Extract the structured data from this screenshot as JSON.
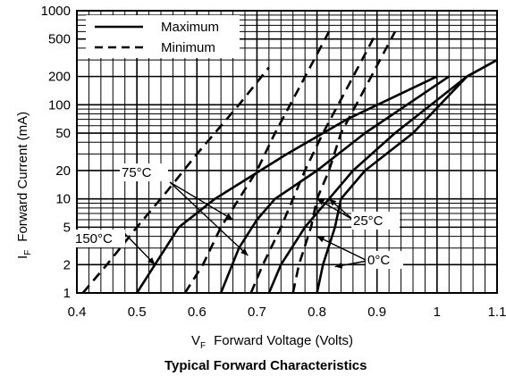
{
  "chart_data": {
    "type": "line",
    "caption": "Typical Forward Characteristics",
    "xlabel": {
      "symbol": "V",
      "sub": "F",
      "text": "Forward Voltage (Volts)"
    },
    "ylabel": {
      "symbol": "I",
      "sub": "F",
      "text": "Forward Current (mA)"
    },
    "xlim": [
      0.4,
      1.1
    ],
    "ylim": [
      1,
      1000
    ],
    "y_scale": "log",
    "x_ticks": [
      "0.4",
      "0.5",
      "0.6",
      "0.7",
      "0.8",
      "0.9",
      "1",
      "1.1"
    ],
    "x_tick_values": [
      0.4,
      0.5,
      0.6,
      0.7,
      0.8,
      0.9,
      1.0,
      1.1
    ],
    "y_ticks": [
      "1",
      "2",
      "5",
      "10",
      "20",
      "50",
      "100",
      "200",
      "500",
      "1000"
    ],
    "y_tick_values": [
      1,
      2,
      5,
      10,
      20,
      50,
      100,
      200,
      500,
      1000
    ],
    "grid": true,
    "legend": {
      "placement": "top-left",
      "entries": [
        {
          "label": "Maximum",
          "style": "solid"
        },
        {
          "label": "Minimum",
          "style": "dashed"
        }
      ]
    },
    "series": [
      {
        "temperature": "150°C",
        "style": "solid",
        "points": [
          [
            0.5,
            1
          ],
          [
            0.53,
            2
          ],
          [
            0.57,
            5
          ],
          [
            0.63,
            10
          ],
          [
            0.75,
            30
          ],
          [
            0.85,
            70
          ],
          [
            1.0,
            200
          ]
        ]
      },
      {
        "temperature": "75°C",
        "style": "solid",
        "points": [
          [
            0.64,
            1
          ],
          [
            0.67,
            3
          ],
          [
            0.7,
            6
          ],
          [
            0.73,
            10
          ],
          [
            0.8,
            20
          ],
          [
            0.88,
            50
          ],
          [
            1.02,
            200
          ]
        ]
      },
      {
        "temperature": "25°C",
        "style": "solid",
        "points": [
          [
            0.72,
            1
          ],
          [
            0.74,
            2
          ],
          [
            0.78,
            5
          ],
          [
            0.82,
            10
          ],
          [
            0.86,
            20
          ],
          [
            0.93,
            50
          ],
          [
            1.05,
            200
          ],
          [
            1.1,
            300
          ]
        ]
      },
      {
        "temperature": "0°C",
        "style": "solid",
        "points": [
          [
            0.8,
            1
          ],
          [
            0.81,
            2
          ],
          [
            0.83,
            5
          ],
          [
            0.84,
            10
          ],
          [
            0.88,
            20
          ],
          [
            0.96,
            50
          ],
          [
            1.05,
            200
          ],
          [
            1.1,
            300
          ]
        ]
      },
      {
        "temperature": "150°C",
        "style": "dashed",
        "points": [
          [
            0.41,
            1
          ],
          [
            0.45,
            2
          ],
          [
            0.5,
            5
          ],
          [
            0.55,
            12
          ],
          [
            0.6,
            30
          ],
          [
            0.67,
            100
          ],
          [
            0.72,
            250
          ]
        ]
      },
      {
        "temperature": "75°C",
        "style": "dashed",
        "points": [
          [
            0.58,
            1
          ],
          [
            0.61,
            2
          ],
          [
            0.64,
            5
          ],
          [
            0.67,
            10
          ],
          [
            0.7,
            20
          ],
          [
            0.73,
            50
          ],
          [
            0.77,
            150
          ],
          [
            0.82,
            600
          ]
        ]
      },
      {
        "temperature": "25°C",
        "style": "dashed",
        "points": [
          [
            0.69,
            1
          ],
          [
            0.71,
            2
          ],
          [
            0.74,
            5
          ],
          [
            0.76,
            10
          ],
          [
            0.78,
            20
          ],
          [
            0.81,
            50
          ],
          [
            0.85,
            150
          ],
          [
            0.9,
            600
          ]
        ]
      },
      {
        "temperature": "0°C",
        "style": "dashed",
        "points": [
          [
            0.76,
            1
          ],
          [
            0.77,
            2
          ],
          [
            0.79,
            5
          ],
          [
            0.8,
            10
          ],
          [
            0.82,
            20
          ],
          [
            0.84,
            50
          ],
          [
            0.88,
            150
          ],
          [
            0.93,
            600
          ]
        ]
      }
    ],
    "annotations": [
      {
        "text": "150°C",
        "targets": [
          [
            0.53,
            2
          ],
          [
            0.485,
            4
          ]
        ]
      },
      {
        "text": "75°C",
        "targets": [
          [
            0.66,
            6
          ],
          [
            0.685,
            2.5
          ]
        ]
      },
      {
        "text": "25°C",
        "targets": [
          [
            0.8,
            10
          ],
          [
            0.82,
            10
          ]
        ]
      },
      {
        "text": "0°C",
        "targets": [
          [
            0.8,
            4
          ],
          [
            0.83,
            1.9
          ]
        ]
      }
    ]
  }
}
